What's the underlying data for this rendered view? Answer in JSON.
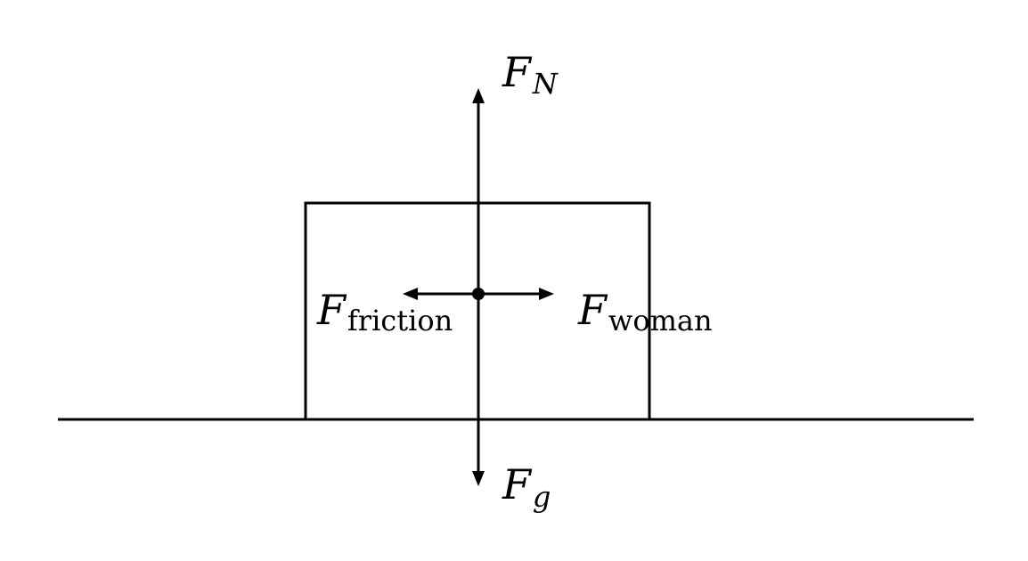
{
  "forces": {
    "normal": {
      "symbol": "F",
      "subscript": "N"
    },
    "gravity": {
      "symbol": "F",
      "subscript": "g"
    },
    "friction": {
      "symbol": "F",
      "subscript": "friction"
    },
    "woman": {
      "symbol": "F",
      "subscript": "woman"
    }
  }
}
